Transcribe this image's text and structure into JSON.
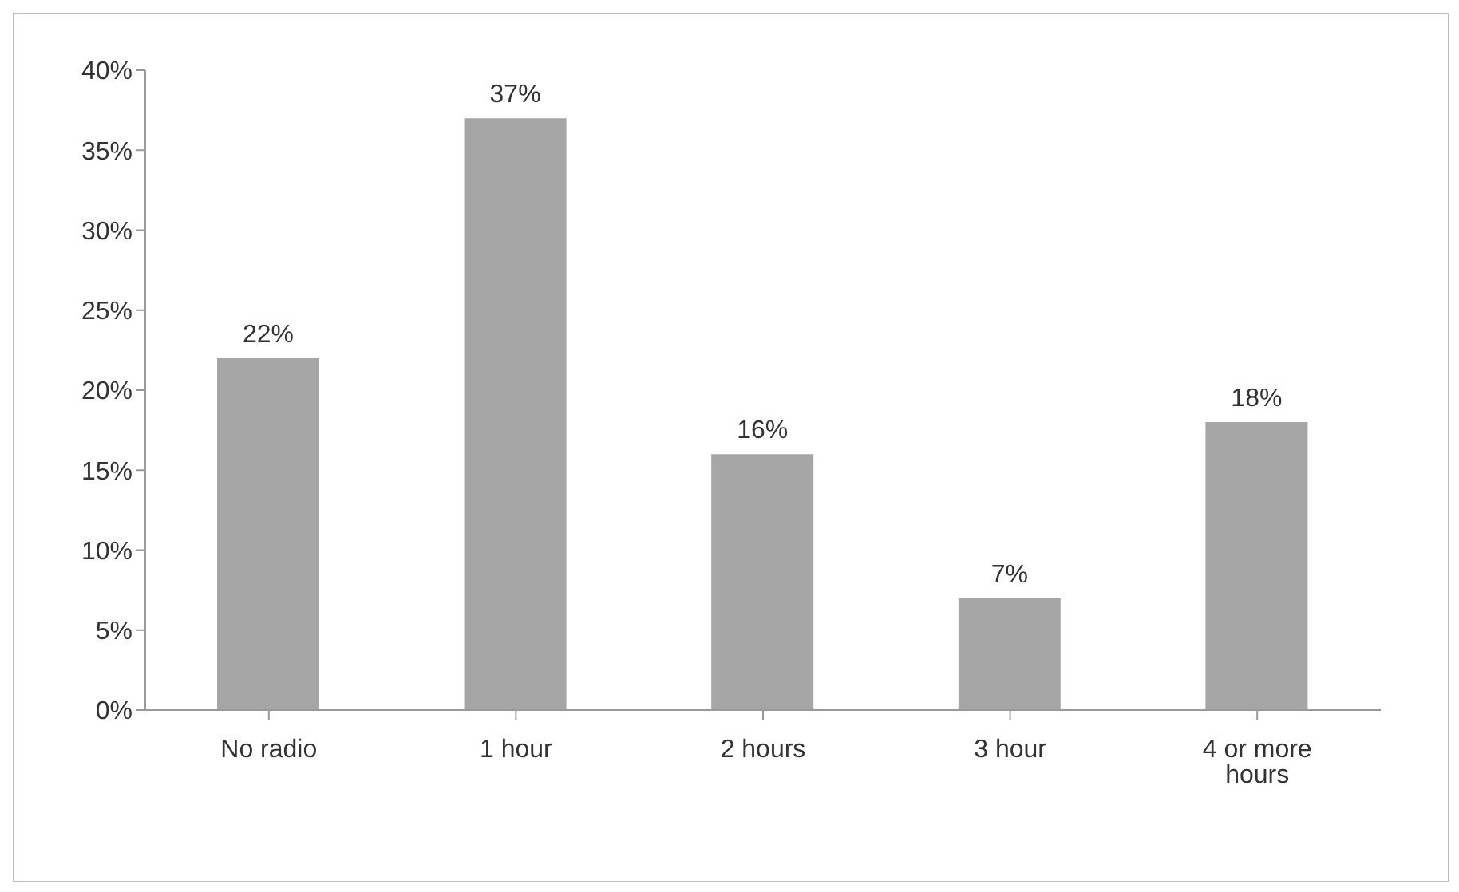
{
  "chart_data": {
    "type": "bar",
    "categories": [
      "No radio",
      "1 hour",
      "2 hours",
      "3 hour",
      "4 or more hours"
    ],
    "values": [
      22,
      37,
      16,
      7,
      18
    ],
    "value_labels": [
      "22%",
      "37%",
      "16%",
      "7%",
      "18%"
    ],
    "color": "#a6a6a6",
    "ylim": [
      0,
      40
    ],
    "yticks": [
      {
        "value": 0,
        "label": "0%"
      },
      {
        "value": 5,
        "label": "5%"
      },
      {
        "value": 10,
        "label": "10%"
      },
      {
        "value": 15,
        "label": "15%"
      },
      {
        "value": 20,
        "label": "20%"
      },
      {
        "value": 25,
        "label": "25%"
      },
      {
        "value": 30,
        "label": "30%"
      },
      {
        "value": 35,
        "label": "35%"
      },
      {
        "value": 40,
        "label": "40%"
      }
    ],
    "grid": false,
    "legend": false
  }
}
